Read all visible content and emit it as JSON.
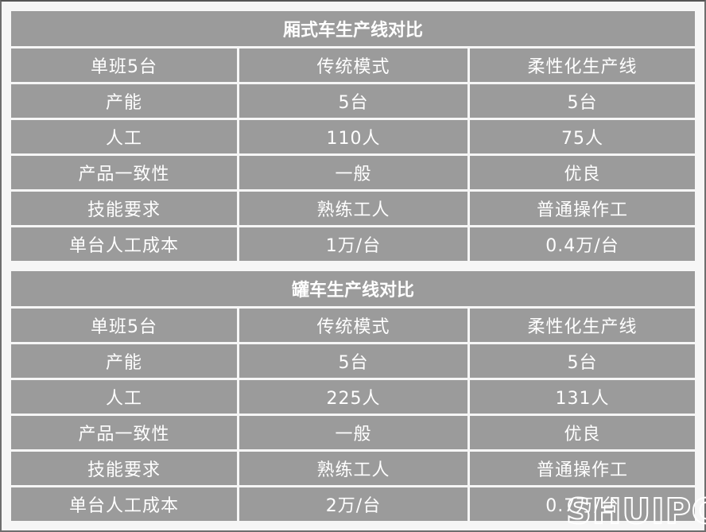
{
  "tables": [
    {
      "title": "厢式车生产线对比",
      "rows": [
        [
          "单班5台",
          "传统模式",
          "柔性化生产线"
        ],
        [
          "产能",
          "5台",
          "5台"
        ],
        [
          "人工",
          "110人",
          "75人"
        ],
        [
          "产品一致性",
          "一般",
          "优良"
        ],
        [
          "技能要求",
          "熟练工人",
          "普通操作工"
        ],
        [
          "单台人工成本",
          "1万/台",
          "0.4万/台"
        ]
      ]
    },
    {
      "title": "罐车生产线对比",
      "rows": [
        [
          "单班5台",
          "传统模式",
          "柔性化生产线"
        ],
        [
          "产能",
          "5台",
          "5台"
        ],
        [
          "人工",
          "225人",
          "131人"
        ],
        [
          "产品一致性",
          "一般",
          "优良"
        ],
        [
          "技能要求",
          "熟练工人",
          "普通操作工"
        ],
        [
          "单台人工成本",
          "2万/台",
          "0.7万/台"
        ]
      ]
    }
  ],
  "watermark": "SHUIPC",
  "colors": {
    "cell": "#9b9b9b",
    "text": "#ffffff",
    "background": "#f6f6f6"
  }
}
